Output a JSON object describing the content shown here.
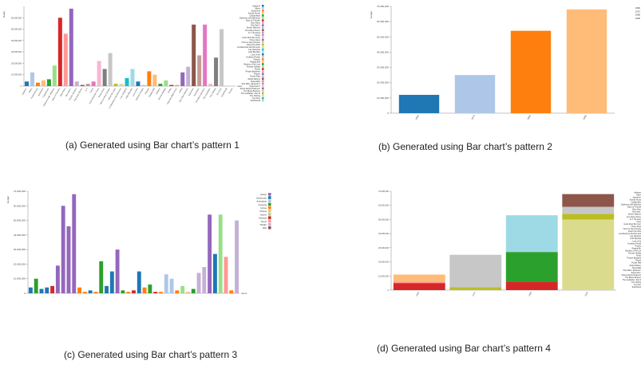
{
  "captions": {
    "a": "(a) Generated using Bar chart’s pattern 1",
    "b": "(b) Generated using Bar chart’s pattern 2",
    "c": "(c) Generated using Bar chart’s pattern 3",
    "d": "(d) Generated using Bar chart’s pattern 4"
  },
  "chart_data": [
    {
      "id": "a",
      "type": "bar",
      "ylabel": "budget",
      "xlabel": "name",
      "ylim": [
        0,
        70000000
      ],
      "yticks": [
        0,
        10000000,
        20000000,
        30000000,
        40000000,
        50000000,
        60000000
      ],
      "ytick_labels": [
        "0",
        "10,000,000",
        "20,000,000",
        "30,000,000",
        "40,000,000",
        "50,000,000",
        "60,000,000"
      ],
      "categories": [
        "Airplane!",
        "Aliens",
        "Animal House",
        "Apartment",
        "Caddyshack",
        "Darkness with Windows",
        "Days of Thunder",
        "Dirty Harry",
        "Die Hard 2",
        "Dream Warriors",
        "Five Easy Pieces",
        "E.T.",
        "Ghost",
        "Gods Must Be Crazy",
        "Home Alone",
        "Hunt for Red October",
        "Inherit the Wind",
        "La Maschera Del Demonio",
        "Las Vampiras",
        "Little Big Man",
        "Lord of the",
        "Ordinary People",
        "Popeye",
        "Raging Bull",
        "Raiders",
        "Roman Holiday",
        "Rocky",
        "Saturday Night Fever",
        "Siskel",
        "Star Wars Episode",
        "Superman",
        "Taxi Driver",
        "The Blues Brothers",
        "The Godfather",
        "The Shining",
        "Toy Story",
        "Total Recall",
        "Tootsie"
      ],
      "values": [
        4000000,
        12000000,
        3000000,
        5000000,
        6000000,
        18000000,
        60000000,
        46000000,
        68000000,
        4000000,
        1000000,
        2000000,
        4000000,
        22000000,
        15000000,
        29000000,
        2000000,
        2000000,
        7000000,
        15000000,
        4000000,
        1000000,
        13000000,
        10000000,
        2000000,
        5000000,
        1000000,
        1000000,
        12000000,
        17000000,
        54000000,
        27000000,
        54000000,
        2000000,
        25000000,
        50000000,
        0,
        0
      ],
      "legend": [
        "Airplane!",
        "Aliens",
        "Apartment",
        "Animal House",
        "Caddyshack",
        "Darkness with Windows",
        "Days of Thunder",
        "Dirty Harry",
        "Die Hard 2",
        "Dream Warriors",
        "Five Easy Pieces",
        "E.T. the Extra",
        "Ghost",
        "Gods Must Be Crazy",
        "Home Alone",
        "Hunt for Red October",
        "Inherit the Wind",
        "La Maschera Del Demonio",
        "Las Vampiras",
        "Little Big Man",
        "Lord of the",
        "Ordinary People",
        "Popeye",
        "Raging Bull",
        "Raiders of the Lost",
        "Roman Holiday",
        "Rocky",
        "Private Benjamin",
        "Psycho",
        "Purple Rain",
        "Rebel Without",
        "Spaceballs",
        "Star Wars: Episode V",
        "Superman II",
        "Swiss Family Robinson",
        "The Blues Brothers",
        "The Godfather: Part III",
        "The Shining",
        "Toy Story",
        "Total Recall"
      ],
      "legend_position": "right"
    },
    {
      "id": "b",
      "type": "bar",
      "ylabel": "budget",
      "ylim": [
        0,
        70000000
      ],
      "yticks": [
        0,
        10000000,
        20000000,
        30000000,
        40000000,
        50000000,
        60000000,
        70000000
      ],
      "ytick_labels": [
        "0",
        "10,000,000",
        "20,000,000",
        "30,000,000",
        "40,000,000",
        "50,000,000",
        "60,000,000",
        "70,000,000"
      ],
      "categories": [
        "1960",
        "1970",
        "1980",
        "1990"
      ],
      "values": [
        12000000,
        25000000,
        54000000,
        68000000
      ],
      "colors": [
        "#1f77b4",
        "#aec7e8",
        "#ff7f0e",
        "#ffbb78"
      ],
      "legend": [
        "1960",
        "1970",
        "1980",
        "1990"
      ],
      "legend_position": "top-right"
    },
    {
      "id": "c",
      "type": "bar",
      "ylabel": "budget",
      "xlabel": "name",
      "ylim": [
        0,
        70000000
      ],
      "yticks": [
        0,
        10000000,
        20000000,
        30000000,
        40000000,
        50000000,
        60000000,
        70000000
      ],
      "ytick_labels": [
        "0",
        "10,000,000",
        "20,000,000",
        "30,000,000",
        "40,000,000",
        "50,000,000",
        "60,000,000",
        "70,000,000"
      ],
      "values": [
        4000000,
        10000000,
        3000000,
        4000000,
        5000000,
        19000000,
        60000000,
        46000000,
        68000000,
        4000000,
        1000000,
        2000000,
        1000000,
        22000000,
        5000000,
        15000000,
        30000000,
        2000000,
        1000000,
        2000000,
        15000000,
        4000000,
        6000000,
        1000000,
        1000000,
        13000000,
        10000000,
        2000000,
        5000000,
        1000000,
        3000000,
        14000000,
        18000000,
        54000000,
        27000000,
        54000000,
        25000000,
        2000000,
        50000000
      ],
      "bar_colors": [
        "#1f77b4",
        "#2ca02c",
        "#1f77b4",
        "#1f77b4",
        "#d62728",
        "#9467bd",
        "#9467bd",
        "#9467bd",
        "#9467bd",
        "#ff7f0e",
        "#ff7f0e",
        "#1f77b4",
        "#ff7f0e",
        "#2ca02c",
        "#1f77b4",
        "#1f77b4",
        "#9467bd",
        "#2ca02c",
        "#ff7f0e",
        "#d62728",
        "#1f77b4",
        "#ff7f0e",
        "#2ca02c",
        "#d62728",
        "#ff7f0e",
        "#aec7e8",
        "#aec7e8",
        "#ff7f0e",
        "#98df8a",
        "#ffbb78",
        "#2ca02c",
        "#c5b0d5",
        "#c5b0d5",
        "#9467bd",
        "#1f77b4",
        "#98df8a",
        "#ff9896",
        "#ff7f0e",
        "#c5b0d5"
      ],
      "legend": [
        "Action",
        "Adventure",
        "Animation",
        "Comedy",
        "Crime",
        "Drama",
        "Horror",
        "Musical",
        "Sci-Fi",
        "Thriller",
        "War"
      ],
      "legend_colors": [
        "#9467bd",
        "#1f77b4",
        "#aec7e8",
        "#2ca02c",
        "#ff7f0e",
        "#ffbb78",
        "#98df8a",
        "#d62728",
        "#ff9896",
        "#c5b0d5",
        "#8c564b"
      ],
      "legend_position": "right"
    },
    {
      "id": "d",
      "type": "bar",
      "stacked": true,
      "ylim": [
        0,
        70000000
      ],
      "yticks": [
        0,
        10000000,
        20000000,
        30000000,
        40000000,
        50000000,
        60000000,
        70000000
      ],
      "ytick_labels": [
        "0",
        "10,000,000",
        "20,000,000",
        "30,000,000",
        "40,000,000",
        "50,000,000",
        "60,000,000",
        "70,000,000"
      ],
      "categories": [
        "1960",
        "1970",
        "1980",
        "1990"
      ],
      "stacks": [
        [
          {
            "value": 5000000,
            "color": "#d62728"
          },
          {
            "value": 1000000,
            "color": "#ff9896"
          },
          {
            "value": 5000000,
            "color": "#ffbb78"
          }
        ],
        [
          {
            "value": 2000000,
            "color": "#bcbd22"
          },
          {
            "value": 23000000,
            "color": "#c7c7c7"
          }
        ],
        [
          {
            "value": 6000000,
            "color": "#d62728"
          },
          {
            "value": 21000000,
            "color": "#2ca02c"
          },
          {
            "value": 26000000,
            "color": "#9edae5"
          }
        ],
        [
          {
            "value": 50000000,
            "color": "#dbdb8d"
          },
          {
            "value": 4000000,
            "color": "#bcbd22"
          },
          {
            "value": 5000000,
            "color": "#c7c7c7"
          },
          {
            "value": 9000000,
            "color": "#8c564b"
          }
        ]
      ],
      "legend": [
        "Airplane!",
        "Aliens",
        "Apartment",
        "Animal House",
        "Caddyshack",
        "Darkness with Windows",
        "Days of Thunder",
        "Dirty Harry",
        "Die Hard 2",
        "Dream Warriors",
        "Five Easy Pieces",
        "E.T. the Extra",
        "Ghost",
        "Gods Must Be Crazy",
        "Home Alone",
        "Hunt for Red October",
        "Inherit the Wind",
        "La Maschera Del Demonio",
        "Las Vampiras",
        "Little Big Man",
        "Lord of the",
        "Ordinary People",
        "Popeye",
        "Raging Bull",
        "Raiders of the Lost",
        "Roman Holiday",
        "Rocky",
        "Private Benjamin",
        "Psycho",
        "Purple Rain",
        "Rebel Without",
        "Spaceballs",
        "Star Wars: Episode V",
        "Superman II",
        "Swiss Family Robinson",
        "The Blues Brothers",
        "The Godfather: Part III",
        "The Shining",
        "Toy Story",
        "Total Recall"
      ],
      "legend_position": "right"
    }
  ]
}
